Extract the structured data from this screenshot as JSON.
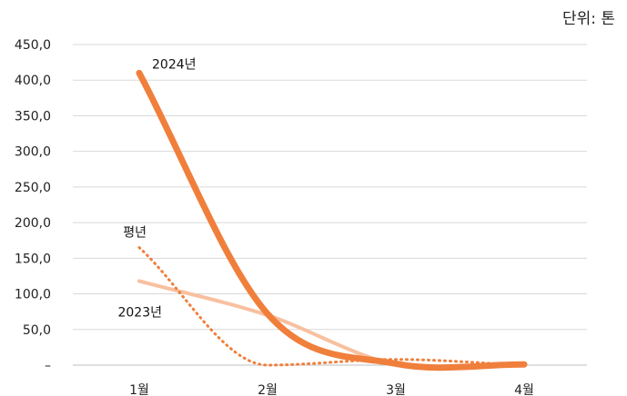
{
  "chart_data": {
    "type": "line",
    "unit_label": "단위: 톤",
    "categories": [
      "1월",
      "2월",
      "3월",
      "4월"
    ],
    "y_tick_labels": [
      "–",
      "50,0",
      "100,0",
      "150,0",
      "200,0",
      "250,0",
      "300,0",
      "350,0",
      "400,0",
      "450,0"
    ],
    "ylim": [
      0,
      450
    ],
    "grid": true,
    "legend": "none",
    "series": [
      {
        "name": "2024년",
        "values": [
          410,
          72,
          2,
          1
        ],
        "color": "#f07f3c",
        "style": "solid-thick"
      },
      {
        "name": "2023년",
        "values": [
          118,
          70,
          1,
          0
        ],
        "color": "#f8c0a0",
        "style": "solid"
      },
      {
        "name": "평년",
        "values": [
          165,
          0,
          8,
          0
        ],
        "color": "#f07f3c",
        "style": "dotted"
      }
    ]
  }
}
